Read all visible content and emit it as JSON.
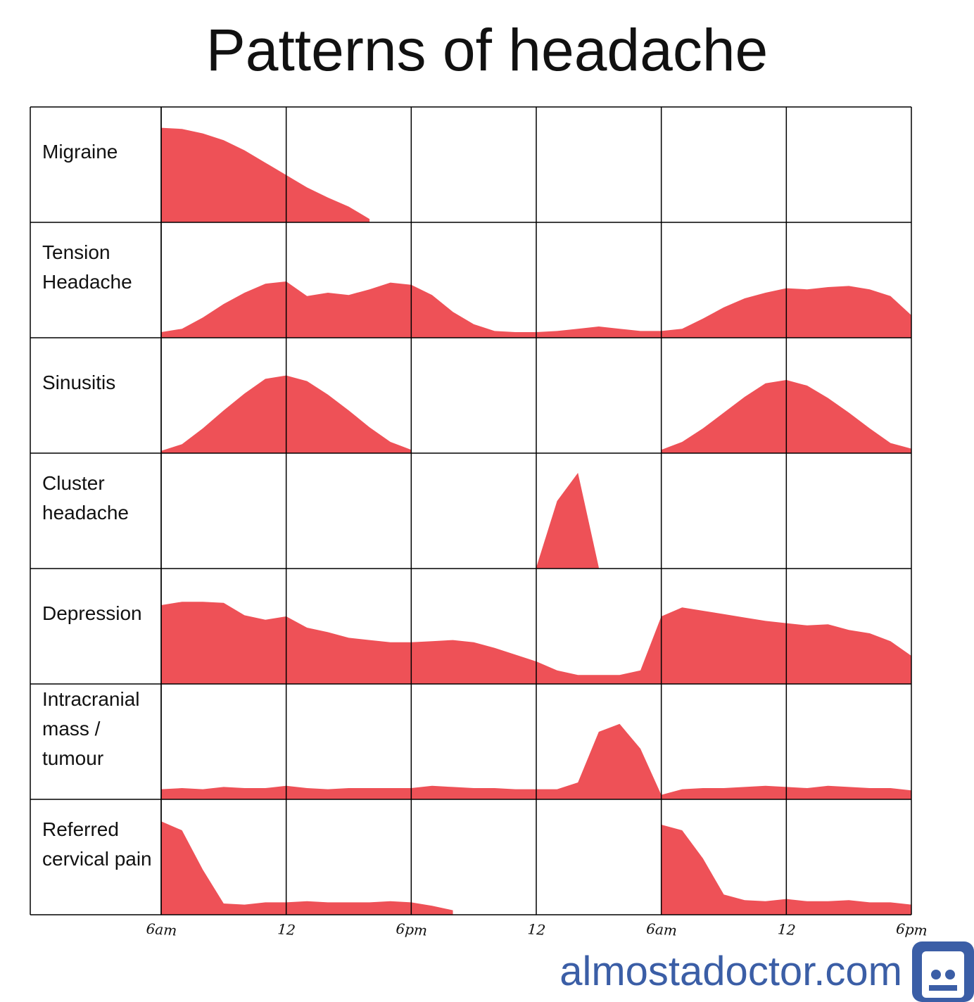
{
  "chart_data": {
    "type": "area",
    "title": "Patterns of headache",
    "footer": "almostadoctor.com",
    "color": "#ee5157",
    "grid": true,
    "x": [
      0,
      1,
      2,
      3,
      4,
      5,
      6,
      7,
      8,
      9,
      10,
      11,
      12,
      13,
      14,
      15,
      16,
      17,
      18,
      19,
      20,
      21,
      22,
      23,
      24,
      25,
      26,
      27,
      28,
      29,
      30,
      31,
      32,
      33,
      34,
      35,
      36
    ],
    "xlim": [
      0,
      36
    ],
    "xticks": [
      {
        "value": 0,
        "label": "6am"
      },
      {
        "value": 6,
        "label": "12"
      },
      {
        "value": 12,
        "label": "6pm"
      },
      {
        "value": 18,
        "label": "12"
      },
      {
        "value": 24,
        "label": "6am"
      },
      {
        "value": 30,
        "label": "12"
      },
      {
        "value": 36,
        "label": "6pm"
      }
    ],
    "ylim": [
      0,
      10
    ],
    "series": [
      {
        "name": "Migraine",
        "values": [
          8.4,
          8.3,
          7.9,
          7.3,
          6.4,
          5.3,
          4.2,
          3.1,
          2.2,
          1.4,
          0.3,
          null,
          null,
          null,
          null,
          null,
          null,
          null,
          null,
          null,
          null,
          null,
          null,
          null,
          null,
          null,
          null,
          null,
          null,
          null,
          null,
          null,
          null,
          null,
          null,
          null,
          null
        ]
      },
      {
        "name": "Tension Headache",
        "values": [
          0.5,
          0.8,
          1.8,
          3.0,
          4.0,
          4.8,
          5.0,
          3.7,
          4.0,
          3.8,
          4.3,
          4.9,
          4.7,
          3.8,
          2.3,
          1.2,
          0.6,
          0.5,
          0.5,
          0.6,
          0.8,
          1.0,
          0.8,
          0.6,
          0.6,
          0.8,
          1.7,
          2.7,
          3.5,
          4.0,
          4.4,
          4.3,
          4.5,
          4.6,
          4.3,
          3.7,
          2.0
        ]
      },
      {
        "name": "Sinusitis",
        "values": [
          0.2,
          0.8,
          2.2,
          3.8,
          5.3,
          6.6,
          6.9,
          6.4,
          5.2,
          3.8,
          2.3,
          1.0,
          0.3,
          null,
          null,
          null,
          null,
          null,
          null,
          null,
          null,
          null,
          null,
          null,
          0.3,
          1.0,
          2.2,
          3.6,
          5.0,
          6.2,
          6.5,
          6.0,
          4.9,
          3.6,
          2.2,
          0.9,
          0.4
        ]
      },
      {
        "name": "Cluster headache",
        "values": [
          null,
          null,
          null,
          null,
          null,
          null,
          null,
          null,
          null,
          null,
          null,
          null,
          null,
          null,
          null,
          null,
          null,
          null,
          0.1,
          6.0,
          8.5,
          0.1,
          null,
          null,
          null,
          null,
          null,
          null,
          null,
          null,
          null,
          null,
          null,
          null,
          null,
          null,
          null
        ]
      },
      {
        "name": "Depression",
        "values": [
          7.0,
          7.3,
          7.3,
          7.2,
          6.1,
          5.7,
          6.0,
          5.0,
          4.6,
          4.1,
          3.9,
          3.7,
          3.7,
          3.8,
          3.9,
          3.7,
          3.2,
          2.6,
          2.0,
          1.2,
          0.8,
          0.8,
          0.8,
          1.2,
          6.0,
          6.8,
          6.5,
          6.2,
          5.9,
          5.6,
          5.4,
          5.2,
          5.3,
          4.8,
          4.5,
          3.8,
          2.5
        ]
      },
      {
        "name": "Intracranial mass / tumour",
        "values": [
          0.9,
          1.0,
          0.9,
          1.1,
          1.0,
          1.0,
          1.2,
          1.0,
          0.9,
          1.0,
          1.0,
          1.0,
          1.0,
          1.2,
          1.1,
          1.0,
          1.0,
          0.9,
          0.9,
          0.9,
          1.5,
          6.0,
          6.7,
          4.5,
          0.4,
          0.9,
          1.0,
          1.0,
          1.1,
          1.2,
          1.1,
          1.0,
          1.2,
          1.1,
          1.0,
          1.0,
          0.8
        ]
      },
      {
        "name": "Referred cervical pain",
        "values": [
          8.3,
          7.5,
          4.0,
          1.0,
          0.9,
          1.1,
          1.1,
          1.2,
          1.1,
          1.1,
          1.1,
          1.2,
          1.1,
          0.8,
          0.4,
          null,
          null,
          null,
          null,
          null,
          null,
          null,
          null,
          null,
          8.0,
          7.5,
          5.0,
          1.8,
          1.3,
          1.2,
          1.4,
          1.2,
          1.2,
          1.3,
          1.1,
          1.1,
          0.9
        ]
      }
    ]
  }
}
